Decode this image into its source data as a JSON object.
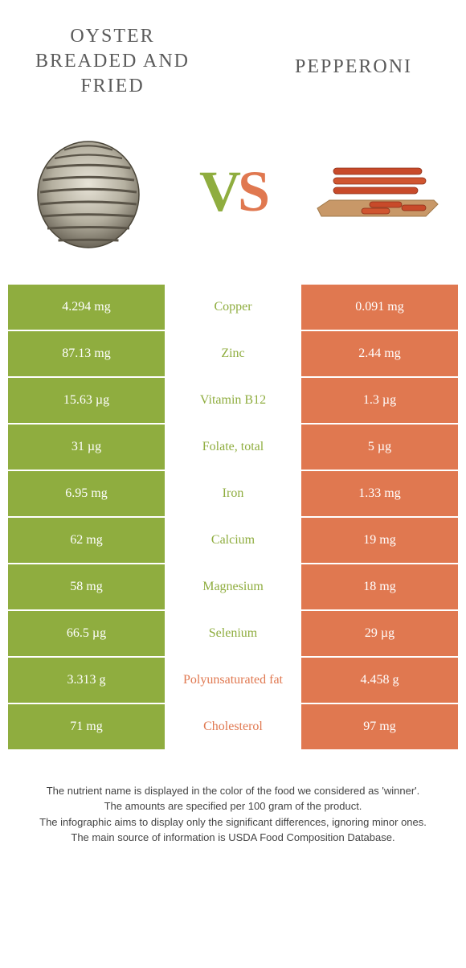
{
  "titles": {
    "left": "Oyster breaded and fried",
    "right": "Pepperoni"
  },
  "vs": {
    "v": "V",
    "s": "S"
  },
  "colors": {
    "green": "#8fad3f",
    "orange": "#e07850",
    "text": "#444444",
    "bg": "#ffffff"
  },
  "rows": [
    {
      "left": "4.294 mg",
      "label": "Copper",
      "right": "0.091 mg",
      "winner": "green"
    },
    {
      "left": "87.13 mg",
      "label": "Zinc",
      "right": "2.44 mg",
      "winner": "green"
    },
    {
      "left": "15.63 µg",
      "label": "Vitamin B12",
      "right": "1.3 µg",
      "winner": "green"
    },
    {
      "left": "31 µg",
      "label": "Folate, total",
      "right": "5 µg",
      "winner": "green"
    },
    {
      "left": "6.95 mg",
      "label": "Iron",
      "right": "1.33 mg",
      "winner": "green"
    },
    {
      "left": "62 mg",
      "label": "Calcium",
      "right": "19 mg",
      "winner": "green"
    },
    {
      "left": "58 mg",
      "label": "Magnesium",
      "right": "18 mg",
      "winner": "green"
    },
    {
      "left": "66.5 µg",
      "label": "Selenium",
      "right": "29 µg",
      "winner": "green"
    },
    {
      "left": "3.313 g",
      "label": "Polyunsaturated fat",
      "right": "4.458 g",
      "winner": "orange"
    },
    {
      "left": "71 mg",
      "label": "Cholesterol",
      "right": "97 mg",
      "winner": "orange"
    }
  ],
  "footer": {
    "line1": "The nutrient name is displayed in the color of the food we considered as 'winner'.",
    "line2": "The amounts are specified per 100 gram of the product.",
    "line3": "The infographic aims to display only the significant differences, ignoring minor ones.",
    "line4": "The main source of information is USDA Food Composition Database."
  }
}
